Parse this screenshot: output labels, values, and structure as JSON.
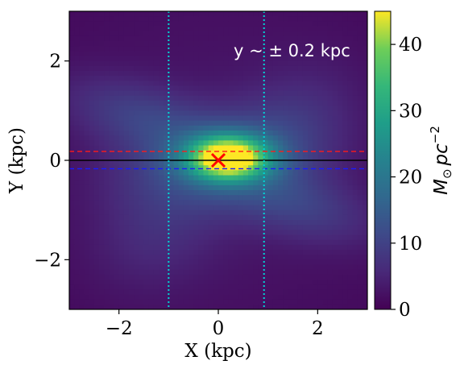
{
  "chart_data": {
    "type": "heatmap",
    "xlabel": "X (kpc)",
    "ylabel": "Y (kpc)",
    "xlim": [
      -3,
      3
    ],
    "ylim": [
      -3,
      3
    ],
    "x_ticks": [
      -2,
      0,
      2
    ],
    "y_ticks": [
      -2,
      0,
      2
    ],
    "x_tick_labels": [
      "−2",
      "0",
      "2"
    ],
    "y_tick_labels": [
      "−2",
      "0",
      "2"
    ],
    "annotation": "y ~  ± 0.2 kpc",
    "colormap": "viridis",
    "colorbar": {
      "label_main": "M",
      "label_sub": "⊙",
      "label_rest": "pc",
      "label_sup": "−2",
      "range": [
        0,
        45
      ],
      "ticks": [
        0,
        10,
        20,
        30,
        40
      ],
      "tick_labels": [
        "0",
        "10",
        "20",
        "30",
        "40"
      ]
    },
    "density_components": [
      {
        "x0": 0.2,
        "y0": 0.05,
        "sx": 0.55,
        "sy": 0.3,
        "rho": 0.0,
        "amp": 42
      },
      {
        "x0": 0.0,
        "y0": 0.0,
        "sx": 1.3,
        "sy": 0.65,
        "rho": 0.2,
        "amp": 10
      },
      {
        "x0": -1.6,
        "y0": 0.9,
        "sx": 1.1,
        "sy": 0.55,
        "rho": -0.45,
        "amp": 7
      },
      {
        "x0": 1.6,
        "y0": -0.9,
        "sx": 1.1,
        "sy": 0.55,
        "rho": -0.45,
        "amp": 7
      },
      {
        "x0": 1.5,
        "y0": 0.8,
        "sx": 0.9,
        "sy": 0.8,
        "rho": 0.3,
        "amp": 4
      },
      {
        "x0": -1.2,
        "y0": -1.4,
        "sx": 0.9,
        "sy": 0.8,
        "rho": 0.2,
        "amp": 4
      },
      {
        "x0": 0.0,
        "y0": 0.0,
        "sx": 3.5,
        "sy": 3.5,
        "rho": 0.0,
        "amp": 3
      }
    ],
    "lines": [
      {
        "orientation": "horizontal",
        "value": 0.18,
        "color": "#ff1a1a",
        "style": "dashed"
      },
      {
        "orientation": "horizontal",
        "value": 0.0,
        "color": "#000000",
        "style": "solid"
      },
      {
        "orientation": "horizontal",
        "value": -0.17,
        "color": "#1a1aff",
        "style": "dashed"
      },
      {
        "orientation": "vertical",
        "value": -1.0,
        "color": "#00d4d4",
        "style": "dotted"
      },
      {
        "orientation": "vertical",
        "value": 0.92,
        "color": "#00d4d4",
        "style": "dotted"
      }
    ],
    "marker": {
      "x": 0.0,
      "y": 0.0,
      "symbol": "x",
      "color": "#ff0000"
    }
  }
}
